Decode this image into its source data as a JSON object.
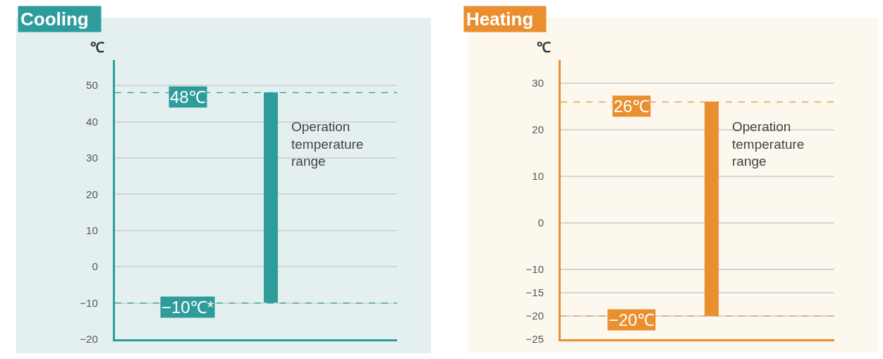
{
  "chart_data": [
    {
      "type": "bar",
      "title": "Cooling",
      "ylabel": "℃",
      "categories": [
        null
      ],
      "values": [
        58
      ],
      "base": [
        -10
      ],
      "color": "#2e9c9b",
      "ylim": [
        -20,
        57
      ],
      "yticks": [
        -20,
        -10,
        0,
        10,
        20,
        30,
        40,
        50
      ],
      "grid": "y",
      "ref_lines": [
        {
          "axis": "y",
          "value": 48,
          "label": "48℃",
          "color": "#2e9c9b",
          "line_style": "dashed"
        },
        {
          "axis": "y",
          "value": -10,
          "label": "−10℃*",
          "color": "#2e9c9b",
          "line_style": "dashed"
        }
      ],
      "annotations": [
        "Operation temperature range"
      ]
    },
    {
      "type": "bar",
      "title": "Heating",
      "ylabel": "℃",
      "categories": [
        null
      ],
      "values": [
        46
      ],
      "base": [
        -20
      ],
      "color": "#ea8f2f",
      "ylim": [
        -25,
        35
      ],
      "yticks": [
        -25,
        -20,
        -15,
        -10,
        0,
        10,
        20,
        30
      ],
      "grid": "y",
      "ref_lines": [
        {
          "axis": "y",
          "value": 26,
          "label": "26℃",
          "color": "#ea8f2f",
          "line_style": "dashed"
        },
        {
          "axis": "y",
          "value": -20,
          "label": "−20℃",
          "color": "#ea8f2f",
          "line_style": "dashed"
        }
      ],
      "annotations": [
        "Operation temperature range"
      ]
    }
  ]
}
